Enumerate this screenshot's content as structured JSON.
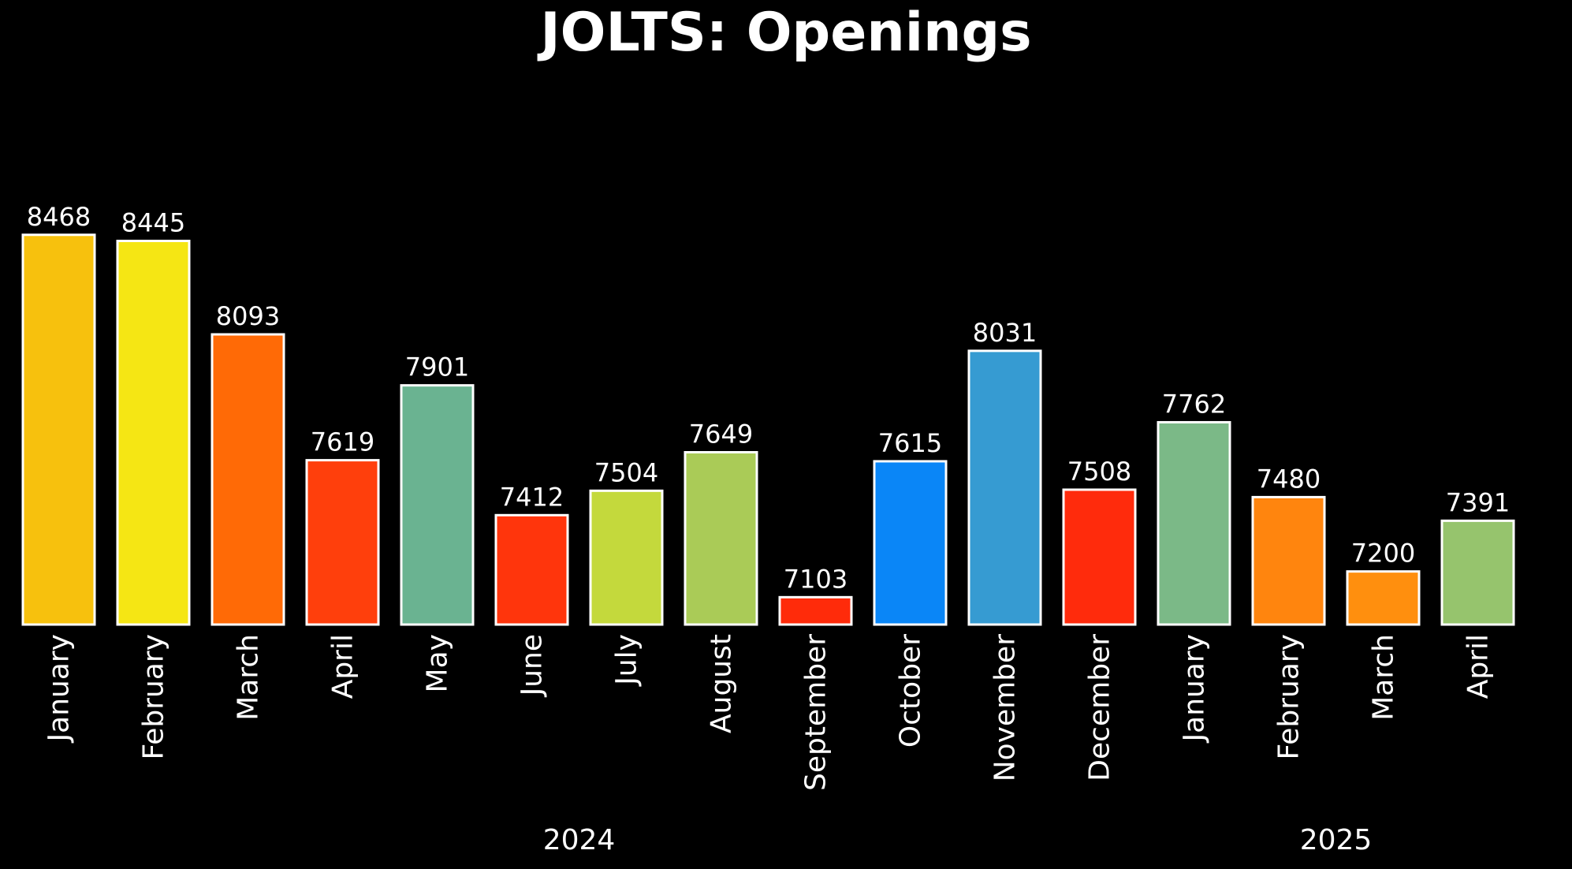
{
  "chart_data": {
    "type": "bar",
    "title": "JOLTS: Openings",
    "categories": [
      "January",
      "February",
      "March",
      "April",
      "May",
      "June",
      "July",
      "August",
      "September",
      "October",
      "November",
      "December",
      "January",
      "February",
      "March",
      "April"
    ],
    "values": [
      8468,
      8445,
      8093,
      7619,
      7901,
      7412,
      7504,
      7649,
      7103,
      7615,
      8031,
      7508,
      7762,
      7480,
      7200,
      7391
    ],
    "value_labels": [
      "8468",
      "8445",
      "8093",
      "7619",
      "7901",
      "7412",
      "7504",
      "7649",
      "7103",
      "7615",
      "8031",
      "7508",
      "7762",
      "7480",
      "7200",
      "7391"
    ],
    "colors": [
      "#f7c10d",
      "#f5e614",
      "#ff6a06",
      "#ff3f0c",
      "#6ab391",
      "#ff350c",
      "#c4d93c",
      "#aacb57",
      "#ff2b0a",
      "#0a86f7",
      "#369bd2",
      "#ff2b0c",
      "#7bb987",
      "#ff850e",
      "#ff8f0e",
      "#96c46d"
    ],
    "year_groups": [
      {
        "label": "2024",
        "start": 0,
        "end": 11
      },
      {
        "label": "2025",
        "start": 12,
        "end": 15
      }
    ],
    "xlabel": "",
    "ylabel": "",
    "ylim": [
      7000,
      8500
    ],
    "grid": false,
    "legend": "none"
  }
}
